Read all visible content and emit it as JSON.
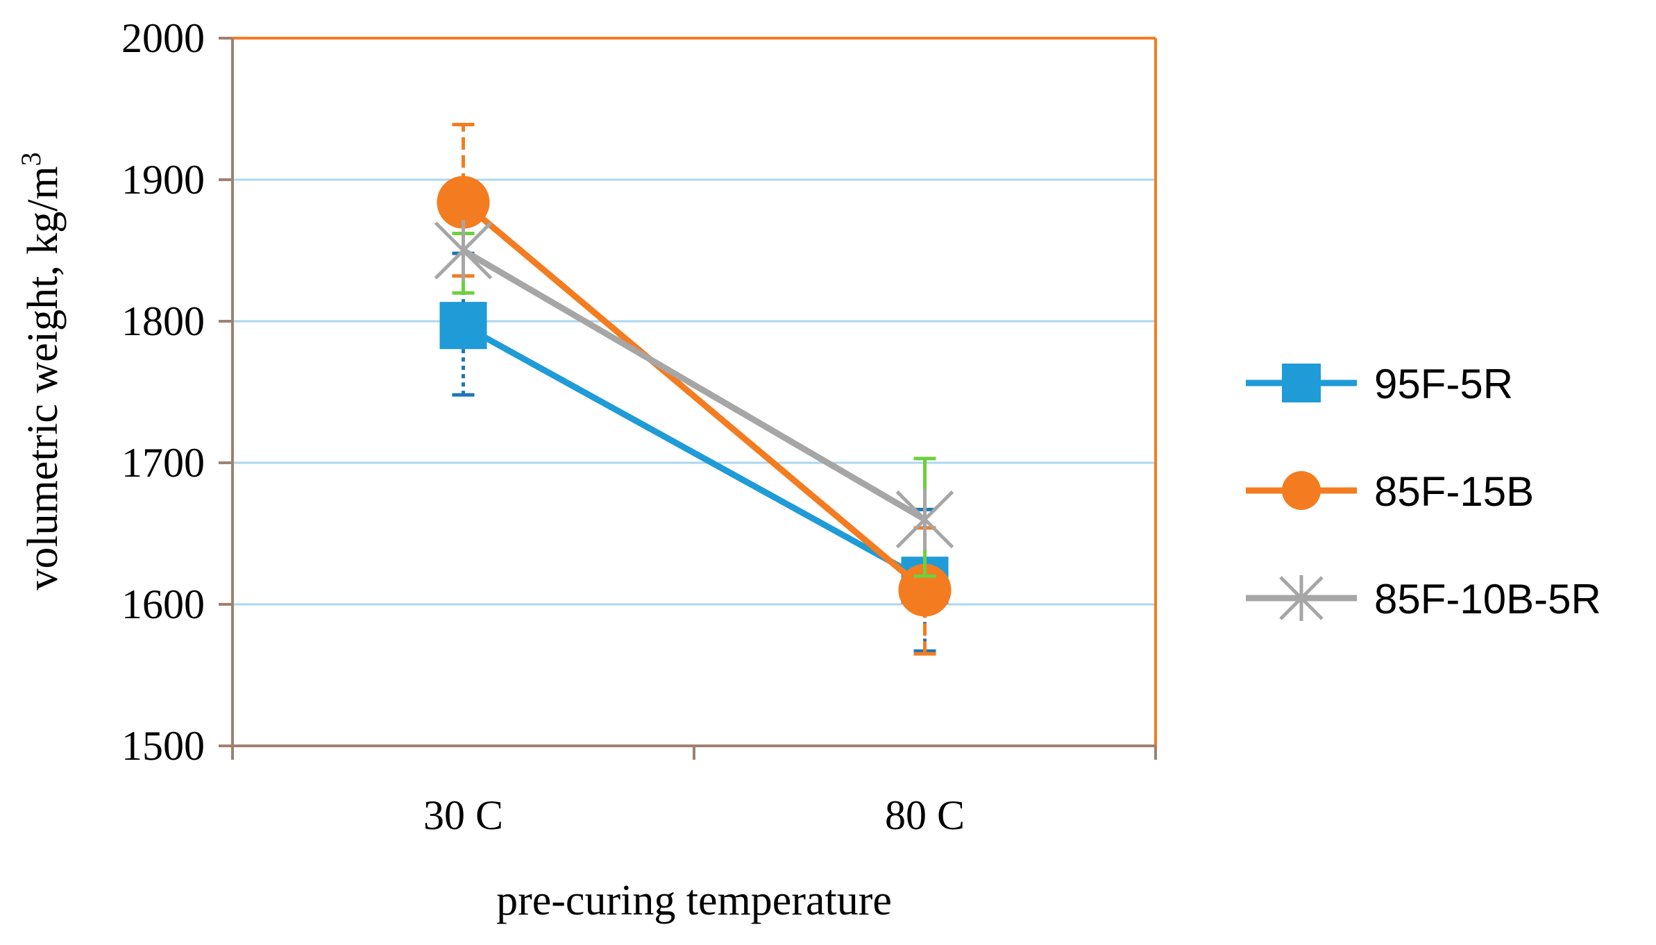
{
  "chart_data": {
    "type": "line",
    "categories": [
      "30 C",
      "80 C"
    ],
    "xlabel": "pre-curing temperature",
    "ylabel": "volumetric weight, kg/m",
    "ylabel_superscript": "3",
    "ylim": [
      1500,
      2000
    ],
    "yticks": [
      1500,
      1600,
      1700,
      1800,
      1900,
      2000
    ],
    "grid": true,
    "legend_position": "right",
    "series": [
      {
        "name": "95F-5R",
        "color": "#1F9BD7",
        "marker": "square",
        "values": [
          1797,
          1617
        ],
        "error_low": [
          1748,
          1567
        ],
        "error_high": [
          1848,
          1667
        ],
        "error_color": "#1F77B4"
      },
      {
        "name": "85F-15B",
        "color": "#F47C20",
        "marker": "circle",
        "values": [
          1884,
          1610
        ],
        "error_low": [
          1832,
          1565
        ],
        "error_high": [
          1939,
          1654
        ],
        "error_color": "#F47C20"
      },
      {
        "name": "85F-10B-5R",
        "color": "#A6A6A6",
        "marker": "star",
        "values": [
          1850,
          1660
        ],
        "error_low": [
          1820,
          1620
        ],
        "error_high": [
          1862,
          1703
        ],
        "error_color": "#6FCF3F"
      }
    ]
  }
}
